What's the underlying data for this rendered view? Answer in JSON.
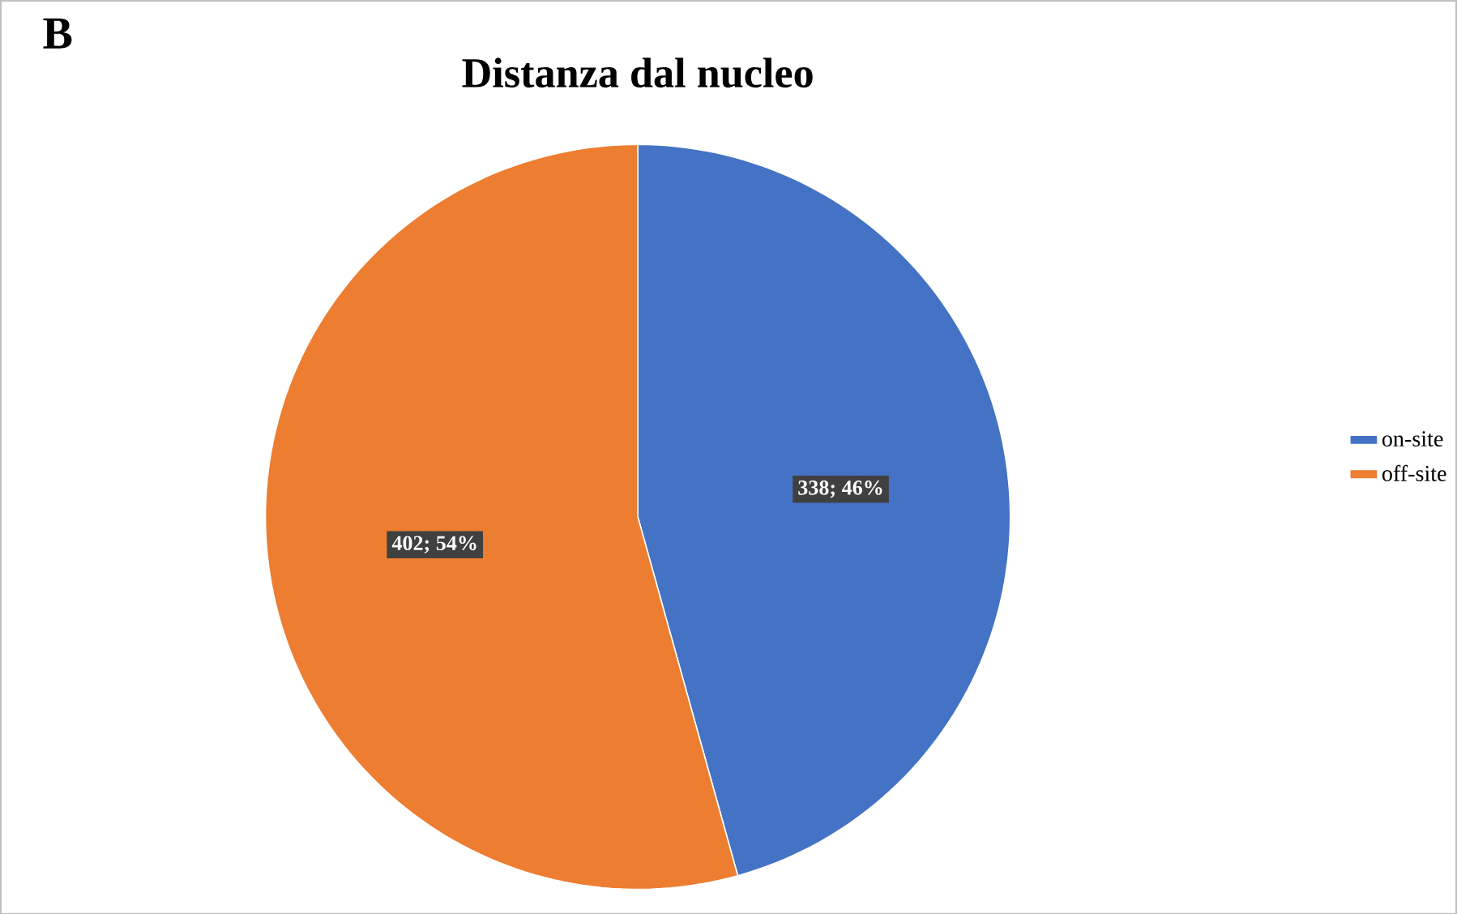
{
  "chart_data": {
    "type": "pie",
    "title": "Distanza dal nucleo",
    "categories": [
      "on-site",
      "off-site"
    ],
    "values": [
      338,
      402
    ],
    "colors": [
      "#4472c4",
      "#ed7d31"
    ],
    "value_labels": [
      "338; 46%",
      "402; 54%"
    ],
    "annotations": [
      "B"
    ],
    "legend": "right"
  }
}
